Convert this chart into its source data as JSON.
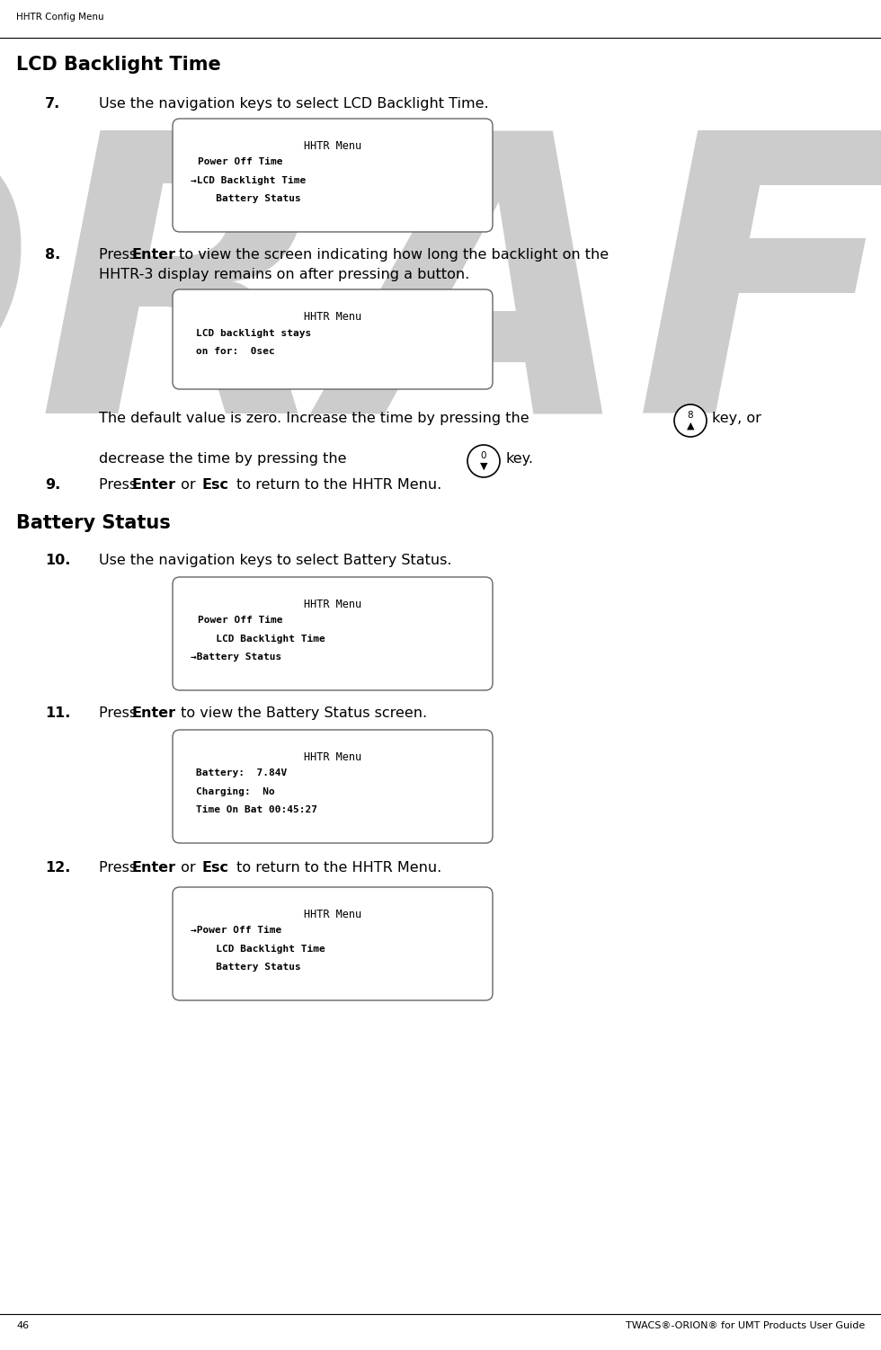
{
  "page_title_left": "HHTR Config Menu",
  "page_number": "46",
  "page_footer_right": "TWACS®-ORION® for UMT Products User Guide",
  "draft_watermark": "DRAFT",
  "section1_title": "LCD Backlight Time",
  "step7_num": "7.",
  "step7_text": "Use the navigation keys to select LCD Backlight Time.",
  "screen1_title": "HHTR Menu",
  "screen1_line1": "Power Off Time",
  "screen1_line2": "→LCD Backlight Time",
  "screen1_line3": "   Battery Status",
  "step8_num": "8.",
  "step8_text1": "Press ",
  "step8_bold1": "Enter",
  "step8_text2": " to view the screen indicating how long the backlight on the",
  "step8_text3": "HHTR-3 display remains on after pressing a button.",
  "screen2_title": "HHTR Menu",
  "screen2_line1": "LCD backlight stays",
  "screen2_line2": "on for:  0sec",
  "default_line1": "The default value is zero. Increase the time by pressing the",
  "key_up_label": "8",
  "default_line2a": "decrease the time by pressing the",
  "key_down_label": "0",
  "default_line2b": "key.",
  "step9_num": "9.",
  "step9_text1": "Press ",
  "step9_bold1": "Enter",
  "step9_text2": " or ",
  "step9_bold2": "Esc",
  "step9_text3": " to return to the HHTR Menu.",
  "section2_title": "Battery Status",
  "step10_num": "10.",
  "step10_text": "Use the navigation keys to select Battery Status.",
  "screen3_title": "HHTR Menu",
  "screen3_line1": "Power Off Time",
  "screen3_line2": "   LCD Backlight Time",
  "screen3_line3": "→Battery Status",
  "step11_num": "11.",
  "step11_text1": "Press ",
  "step11_bold1": "Enter",
  "step11_text2": " to view the Battery Status screen.",
  "screen4_title": "HHTR Menu",
  "screen4_line1": "Battery:  7.84V",
  "screen4_line2": "Charging:  No",
  "screen4_line3": "Time On Bat 00:45:27",
  "step12_num": "12.",
  "step12_text1": "Press ",
  "step12_bold1": "Enter",
  "step12_text2": " or ",
  "step12_bold2": "Esc",
  "step12_text3": " to return to the HHTR Menu.",
  "screen5_title": "HHTR Menu",
  "screen5_line1": "→Power Off Time",
  "screen5_line2": "   LCD Backlight Time",
  "screen5_line3": "   Battery Status",
  "bg_color": "#ffffff",
  "screen_bg": "#ffffff",
  "screen_border": "#666666"
}
